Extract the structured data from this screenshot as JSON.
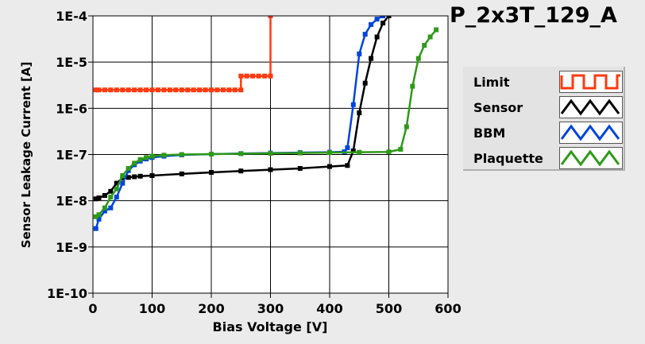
{
  "chart_data": {
    "type": "line",
    "title": "P_2x3T_129_A",
    "xlabel": "Bias Voltage [V]",
    "ylabel": "Sensor Leakage Current [A]",
    "xlim": [
      0,
      600
    ],
    "ylim": [
      1e-10,
      0.0001
    ],
    "yscale": "log",
    "grid": true,
    "legend_position": "right",
    "x_ticks": [
      "0",
      "100",
      "200",
      "300",
      "400",
      "500",
      "600"
    ],
    "y_ticks": [
      "1E-10",
      "1E-9",
      "1E-8",
      "1E-7",
      "1E-6",
      "1E-5",
      "1E-4"
    ],
    "series": [
      {
        "name": "Limit",
        "color": "#ff3a10",
        "legend_pattern": "square",
        "x": [
          5,
          10,
          20,
          30,
          40,
          50,
          60,
          70,
          80,
          90,
          100,
          110,
          120,
          130,
          140,
          150,
          160,
          170,
          180,
          190,
          200,
          210,
          220,
          230,
          240,
          250,
          250,
          260,
          270,
          280,
          290,
          300,
          300
        ],
        "y": [
          2.5e-06,
          2.5e-06,
          2.5e-06,
          2.5e-06,
          2.5e-06,
          2.5e-06,
          2.5e-06,
          2.5e-06,
          2.5e-06,
          2.5e-06,
          2.5e-06,
          2.5e-06,
          2.5e-06,
          2.5e-06,
          2.5e-06,
          2.5e-06,
          2.5e-06,
          2.5e-06,
          2.5e-06,
          2.5e-06,
          2.5e-06,
          2.5e-06,
          2.5e-06,
          2.5e-06,
          2.5e-06,
          2.5e-06,
          5e-06,
          5e-06,
          5e-06,
          5e-06,
          5e-06,
          5e-06,
          0.0001
        ]
      },
      {
        "name": "Sensor",
        "color": "#000000",
        "legend_pattern": "triangle",
        "x": [
          5,
          10,
          20,
          30,
          40,
          50,
          60,
          70,
          80,
          100,
          150,
          200,
          250,
          300,
          350,
          400,
          430,
          440,
          450,
          460,
          470,
          480,
          490,
          500
        ],
        "y": [
          1.1e-08,
          1.15e-08,
          1.3e-08,
          1.6e-08,
          2.4e-08,
          3.1e-08,
          3.2e-08,
          3.3e-08,
          3.4e-08,
          3.5e-08,
          3.8e-08,
          4.1e-08,
          4.4e-08,
          4.7e-08,
          5e-08,
          5.5e-08,
          5.8e-08,
          1.2e-07,
          8e-07,
          3.5e-06,
          1.2e-05,
          3.5e-05,
          7e-05,
          0.0001
        ]
      },
      {
        "name": "BBM",
        "color": "#0044dd",
        "legend_pattern": "triangle",
        "x": [
          5,
          10,
          20,
          30,
          40,
          50,
          60,
          70,
          80,
          90,
          100,
          120,
          150,
          200,
          250,
          300,
          350,
          400,
          425,
          430,
          440,
          450,
          460,
          470,
          480,
          490
        ],
        "y": [
          2.5e-09,
          4e-09,
          6e-09,
          7e-09,
          1.2e-08,
          2.4e-08,
          4.5e-08,
          6e-08,
          7.2e-08,
          8e-08,
          8.6e-08,
          9.2e-08,
          9.8e-08,
          1.02e-07,
          1.05e-07,
          1.08e-07,
          1.1e-07,
          1.12e-07,
          1.15e-07,
          1.4e-07,
          1.2e-06,
          1.5e-05,
          4e-05,
          6.5e-05,
          8.5e-05,
          0.0001
        ]
      },
      {
        "name": "Plaquette",
        "color": "#2e9a18",
        "legend_pattern": "triangle",
        "x": [
          5,
          10,
          20,
          30,
          40,
          50,
          60,
          70,
          80,
          90,
          100,
          120,
          150,
          200,
          250,
          300,
          350,
          400,
          450,
          500,
          520,
          530,
          540,
          550,
          560,
          570,
          580
        ],
        "y": [
          4.5e-09,
          5e-09,
          7e-09,
          1.2e-08,
          1.8e-08,
          3.5e-08,
          5e-08,
          6.5e-08,
          7.8e-08,
          8.6e-08,
          9.2e-08,
          9.7e-08,
          1e-07,
          1.02e-07,
          1.04e-07,
          1.06e-07,
          1.08e-07,
          1.1e-07,
          1.12e-07,
          1.14e-07,
          1.3e-07,
          4e-07,
          3e-06,
          1.2e-05,
          2.3e-05,
          3.5e-05,
          5e-05
        ]
      }
    ]
  }
}
